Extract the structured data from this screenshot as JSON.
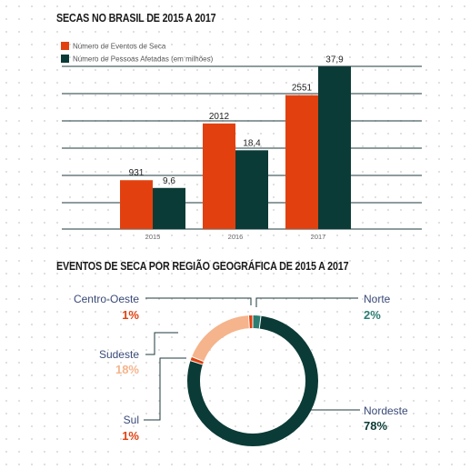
{
  "chart_data": [
    {
      "type": "bar",
      "title": "SECAS NO BRASIL DE 2015 A 2017",
      "categories": [
        "2015",
        "2016",
        "2017"
      ],
      "series": [
        {
          "name": "Número de Eventos de Seca",
          "values": [
            931,
            2012,
            2551
          ],
          "labels": [
            "931",
            "2012",
            "2551"
          ],
          "color": "#e2410f",
          "scale_max": 3100
        },
        {
          "name": "Número de Pessoas Afetadas (em milhões)",
          "values": [
            9.6,
            18.4,
            37.9
          ],
          "labels": [
            "9,6",
            "18,4",
            "37,9"
          ],
          "color": "#0b3b36",
          "scale_max": 38
        }
      ],
      "grid": true,
      "legend": "top-left"
    },
    {
      "type": "pie",
      "style": "donut",
      "title": "EVENTOS DE SECA POR REGIÃO GEOGRÁFICA DE 2015 A 2017",
      "slices": [
        {
          "label": "Norte",
          "value": 2,
          "pct_label": "2%",
          "color": "#2b7d72"
        },
        {
          "label": "Nordeste",
          "value": 78,
          "pct_label": "78%",
          "color": "#0b3b36"
        },
        {
          "label": "Sul",
          "value": 1,
          "pct_label": "1%",
          "color": "#e2410f"
        },
        {
          "label": "Sudeste",
          "value": 18,
          "pct_label": "18%",
          "color": "#f5b48c"
        },
        {
          "label": "Centro-Oeste",
          "value": 1,
          "pct_label": "1%",
          "color": "#e2410f"
        }
      ]
    }
  ]
}
